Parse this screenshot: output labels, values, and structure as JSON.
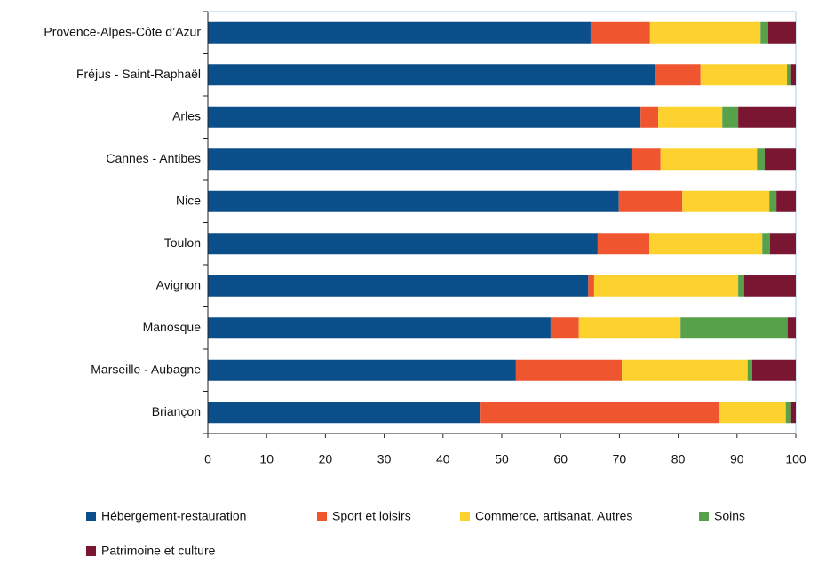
{
  "chart_data": {
    "type": "stacked-barh",
    "categories": [
      "Provence-Alpes-Côte d’Azur",
      "Fréjus - Saint-Raphaël",
      "Arles",
      "Cannes - Antibes",
      "Nice",
      "Toulon",
      "Avignon",
      "Manosque",
      "Marseille - Aubagne",
      "Briançon"
    ],
    "series": [
      {
        "name": "Hébergement-restauration",
        "color": "#0b4f8a",
        "values": [
          65.1,
          76.1,
          73.6,
          72.2,
          69.9,
          66.3,
          64.7,
          58.3,
          52.4,
          46.4
        ]
      },
      {
        "name": "Sport et loisirs",
        "color": "#ef5630",
        "values": [
          10.1,
          7.7,
          3.0,
          4.8,
          10.8,
          8.8,
          1.0,
          4.8,
          18.0,
          40.6
        ]
      },
      {
        "name": "Commerce, artisanat, Autres",
        "color": "#fdd22f",
        "values": [
          18.8,
          14.7,
          10.9,
          16.4,
          14.8,
          19.2,
          24.5,
          17.3,
          21.4,
          11.3
        ]
      },
      {
        "name": "Soins",
        "color": "#57a14a",
        "values": [
          1.3,
          0.7,
          2.7,
          1.3,
          1.2,
          1.3,
          1.0,
          18.2,
          0.8,
          0.9
        ]
      },
      {
        "name": "Patrimoine et culture",
        "color": "#7a1532",
        "values": [
          4.7,
          0.8,
          9.8,
          5.3,
          3.3,
          4.4,
          8.8,
          1.4,
          7.4,
          0.8
        ]
      }
    ],
    "xlim": [
      0,
      100
    ],
    "xticks": [
      0,
      10,
      20,
      30,
      40,
      50,
      60,
      70,
      80,
      90,
      100
    ]
  }
}
